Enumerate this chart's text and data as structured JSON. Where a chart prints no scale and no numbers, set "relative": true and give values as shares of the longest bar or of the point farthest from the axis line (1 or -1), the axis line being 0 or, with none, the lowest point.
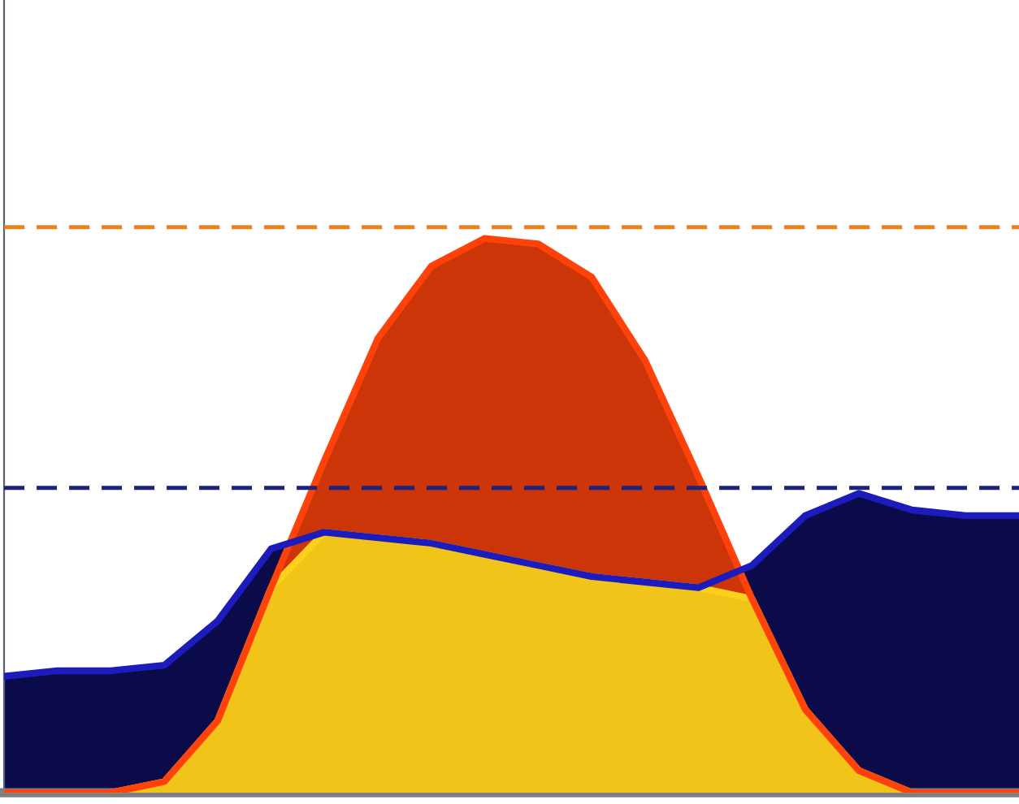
{
  "chart_data": {
    "type": "area",
    "relative": true,
    "categories": [
      null,
      null,
      null,
      null,
      null,
      null,
      null,
      null,
      null,
      null,
      null,
      null,
      null,
      null,
      null,
      null,
      null,
      null,
      null,
      null
    ],
    "series": [
      {
        "color": "#0b0b4a",
        "values": [
          0.21,
          0.22,
          0.22,
          0.23,
          0.31,
          0.44,
          0.47,
          0.46,
          0.45,
          0.43,
          0.41,
          0.39,
          0.38,
          0.37,
          0.41,
          0.5,
          0.54,
          0.51,
          0.5,
          0.5
        ]
      },
      {
        "color": "#cc3508",
        "values": [
          0,
          0,
          0,
          0.02,
          0.13,
          0.37,
          0.6,
          0.82,
          0.95,
          1.0,
          0.99,
          0.93,
          0.78,
          0.57,
          0.35,
          0.15,
          0.04,
          0,
          0,
          0
        ]
      },
      {
        "color": "#f0c419",
        "values": [
          0,
          0,
          0,
          0.02,
          0.13,
          0.37,
          0.47,
          0.46,
          0.45,
          0.43,
          0.41,
          0.39,
          0.38,
          0.37,
          0.35,
          0.15,
          0.04,
          0,
          0,
          0
        ]
      }
    ],
    "ref_lines": [
      {
        "axis": "y",
        "value": 1.02,
        "color": "#e8821e",
        "line_style": "dashed"
      },
      {
        "axis": "y",
        "value": 0.55,
        "color": "#1a237e",
        "line_style": "dashed"
      }
    ],
    "grid": false,
    "legend": false
  }
}
